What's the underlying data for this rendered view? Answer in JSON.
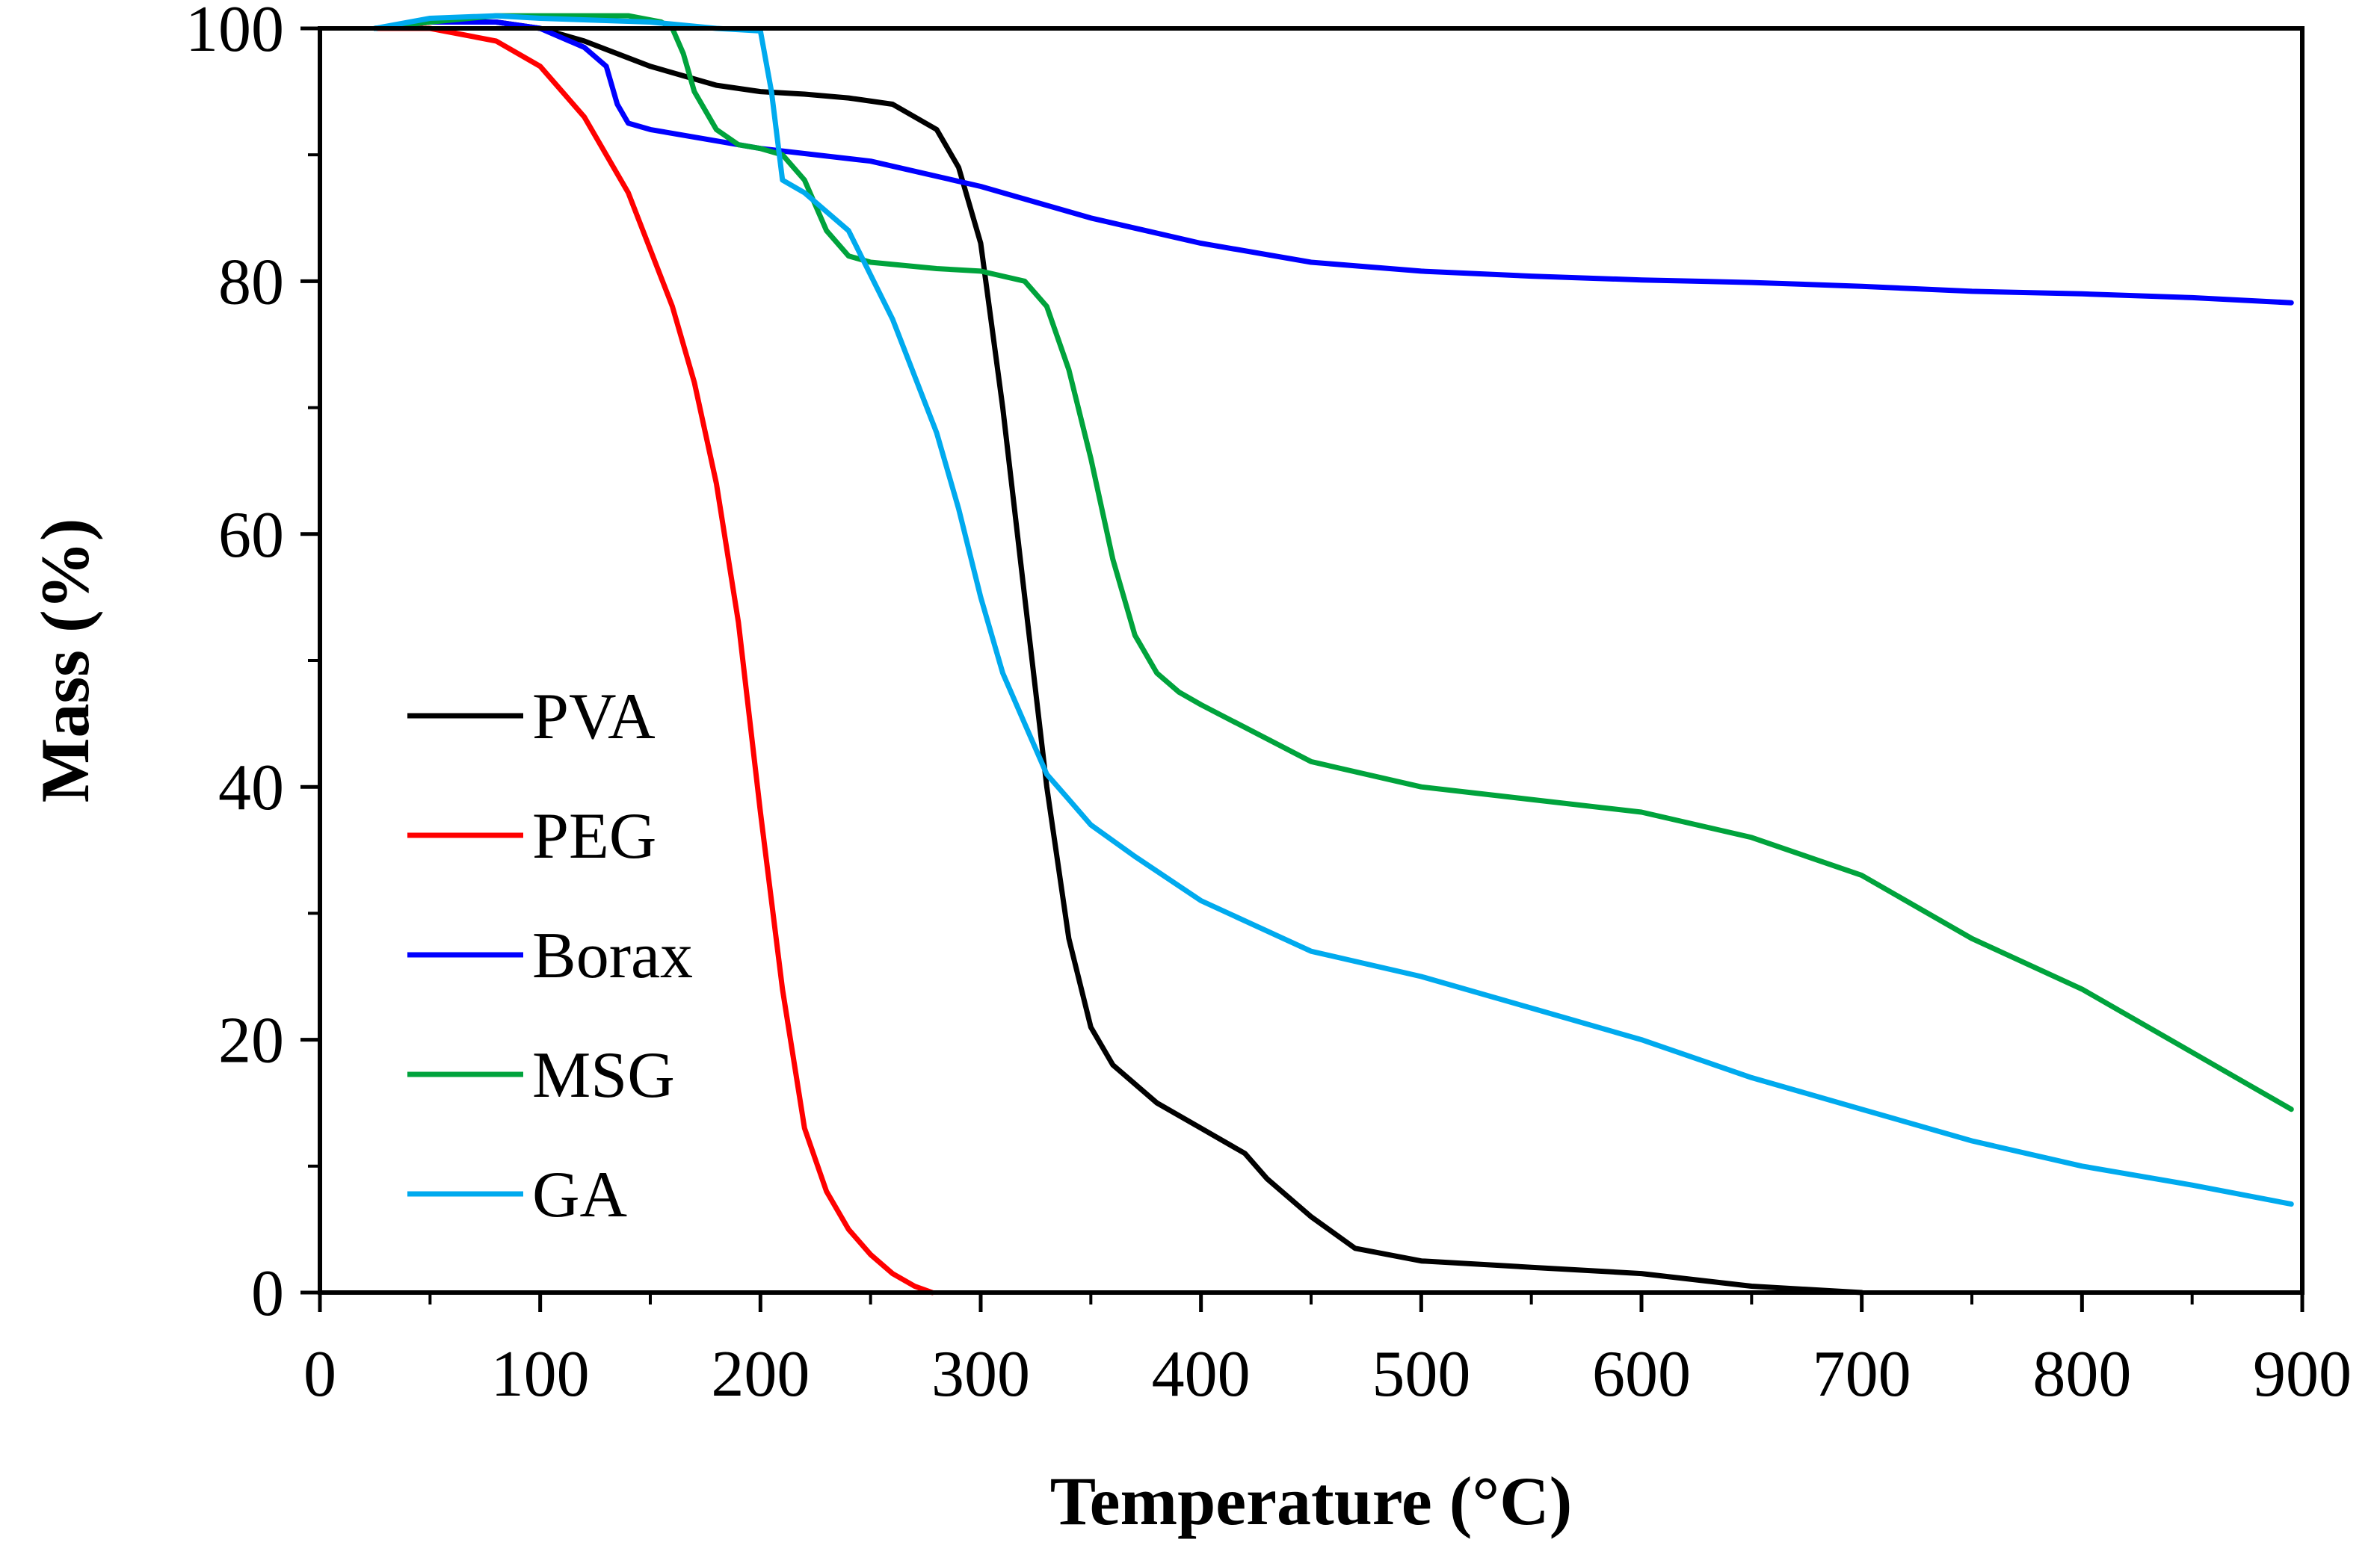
{
  "chart_data": {
    "type": "line",
    "title": "",
    "xlabel": "Temperature (°C)",
    "ylabel": "Mass (%)",
    "xlim": [
      0,
      900
    ],
    "ylim": [
      0,
      100
    ],
    "xticks": [
      "0",
      "100",
      "200",
      "300",
      "400",
      "500",
      "600",
      "700",
      "800",
      "900"
    ],
    "yticks": [
      "0",
      "20",
      "40",
      "60",
      "80",
      "100"
    ],
    "grid": false,
    "legend_position": "left-middle",
    "series": [
      {
        "name": "PVA",
        "color": "#000000",
        "x": [
          25,
          50,
          80,
          100,
          120,
          150,
          180,
          200,
          220,
          240,
          260,
          280,
          290,
          300,
          310,
          320,
          330,
          340,
          350,
          360,
          370,
          380,
          400,
          420,
          430,
          450,
          470,
          500,
          550,
          600,
          650,
          700
        ],
        "y": [
          100,
          100.5,
          100.5,
          100,
          99,
          97,
          95.5,
          95,
          94.8,
          94.5,
          94,
          92,
          89,
          83,
          70,
          55,
          40,
          28,
          21,
          18,
          16.5,
          15,
          13,
          11,
          9,
          6,
          3.5,
          2.5,
          2,
          1.5,
          0.5,
          0
        ]
      },
      {
        "name": "PEG",
        "color": "#ff0000",
        "x": [
          25,
          50,
          80,
          100,
          120,
          140,
          160,
          170,
          180,
          190,
          200,
          210,
          220,
          230,
          240,
          250,
          260,
          270,
          278
        ],
        "y": [
          100,
          100,
          99,
          97,
          93,
          87,
          78,
          72,
          64,
          53,
          38,
          24,
          13,
          8,
          5,
          3,
          1.5,
          0.5,
          0
        ]
      },
      {
        "name": "Borax",
        "color": "#0000ff",
        "x": [
          25,
          50,
          80,
          100,
          120,
          130,
          135,
          140,
          150,
          200,
          250,
          300,
          350,
          400,
          450,
          500,
          550,
          600,
          650,
          700,
          750,
          800,
          850,
          895
        ],
        "y": [
          100,
          100.5,
          100.5,
          100,
          98.5,
          97,
          94,
          92.5,
          92,
          90.5,
          89.5,
          87.5,
          85,
          83,
          81.5,
          80.8,
          80.4,
          80.1,
          79.9,
          79.6,
          79.2,
          79,
          78.7,
          78.3
        ]
      },
      {
        "name": "MSG",
        "color": "#00a33c",
        "x": [
          25,
          50,
          80,
          100,
          140,
          155,
          160,
          165,
          170,
          180,
          190,
          200,
          210,
          220,
          230,
          240,
          250,
          280,
          300,
          320,
          330,
          340,
          350,
          360,
          370,
          380,
          390,
          400,
          450,
          500,
          550,
          600,
          650,
          700,
          750,
          800,
          850,
          870,
          895
        ],
        "y": [
          100,
          100.5,
          101,
          101,
          101,
          100.5,
          100,
          98,
          95,
          92,
          90.8,
          90.5,
          90,
          88,
          84,
          82,
          81.5,
          81,
          80.8,
          80,
          78,
          73,
          66,
          58,
          52,
          49,
          47.5,
          46.5,
          42,
          40,
          39,
          38,
          36,
          33,
          28,
          24,
          19,
          17,
          14.5
        ]
      },
      {
        "name": "GA",
        "color": "#00aaee",
        "x": [
          25,
          50,
          80,
          100,
          150,
          180,
          200,
          205,
          210,
          220,
          240,
          260,
          280,
          290,
          300,
          310,
          320,
          330,
          340,
          350,
          370,
          400,
          450,
          500,
          550,
          600,
          650,
          700,
          750,
          800,
          850,
          895
        ],
        "y": [
          100,
          100.8,
          101,
          100.8,
          100.5,
          100,
          99.8,
          95,
          88,
          87,
          84,
          77,
          68,
          62,
          55,
          49,
          45,
          41,
          39,
          37,
          34.5,
          31,
          27,
          25,
          22.5,
          20,
          17,
          14.5,
          12,
          10,
          8.5,
          7
        ]
      }
    ]
  }
}
